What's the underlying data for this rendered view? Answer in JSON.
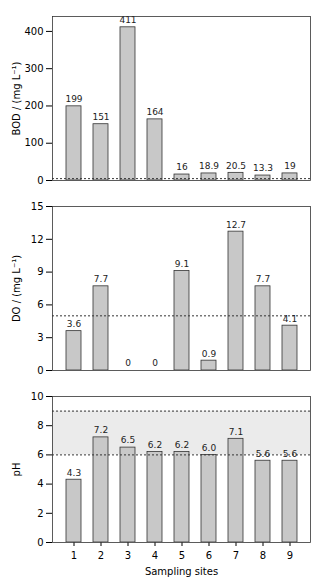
{
  "chart_data": [
    {
      "type": "bar",
      "y_label": "BOD / (mg L⁻¹)",
      "categories": [
        "1",
        "2",
        "3",
        "4",
        "5",
        "6",
        "7",
        "8",
        "9"
      ],
      "values": [
        199,
        151,
        411,
        164,
        16,
        18.9,
        20.5,
        13.3,
        19
      ],
      "color": "#c8c8c8",
      "ylim": [
        0,
        440
      ],
      "yticks": [
        0,
        100,
        200,
        300,
        400
      ],
      "reference_lines": [
        5
      ],
      "data_labels": true,
      "tick_labels": "y"
    },
    {
      "type": "bar",
      "y_label": "DO / (mg L⁻¹)",
      "categories": [
        "1",
        "2",
        "3",
        "4",
        "5",
        "6",
        "7",
        "8",
        "9"
      ],
      "values": [
        3.6,
        7.7,
        0,
        0,
        9.1,
        0.9,
        12.7,
        7.7,
        4.1
      ],
      "color": "#c8c8c8",
      "ylim": [
        0,
        15
      ],
      "yticks": [
        0,
        3,
        6,
        9,
        12,
        15
      ],
      "reference_lines": [
        5
      ],
      "data_labels": true,
      "tick_labels": "y"
    },
    {
      "type": "bar",
      "y_label": "pH",
      "x_label": "Sampling sites",
      "categories": [
        "1",
        "2",
        "3",
        "4",
        "5",
        "6",
        "7",
        "8",
        "9"
      ],
      "values": [
        4.3,
        7.2,
        6.5,
        6.2,
        6.2,
        6.0,
        7.1,
        5.6,
        5.6
      ],
      "value_labels": [
        "4.3",
        "7.2",
        "6.5",
        "6.2",
        "6.2",
        "6.0",
        "7.1",
        "5.6",
        "5.6"
      ],
      "color": "#c8c8c8",
      "ylim": [
        0,
        10
      ],
      "yticks": [
        0,
        2,
        4,
        6,
        8,
        10
      ],
      "reference_lines": [
        6,
        9
      ],
      "shaded_range": [
        6,
        9
      ],
      "data_labels": true
    }
  ]
}
